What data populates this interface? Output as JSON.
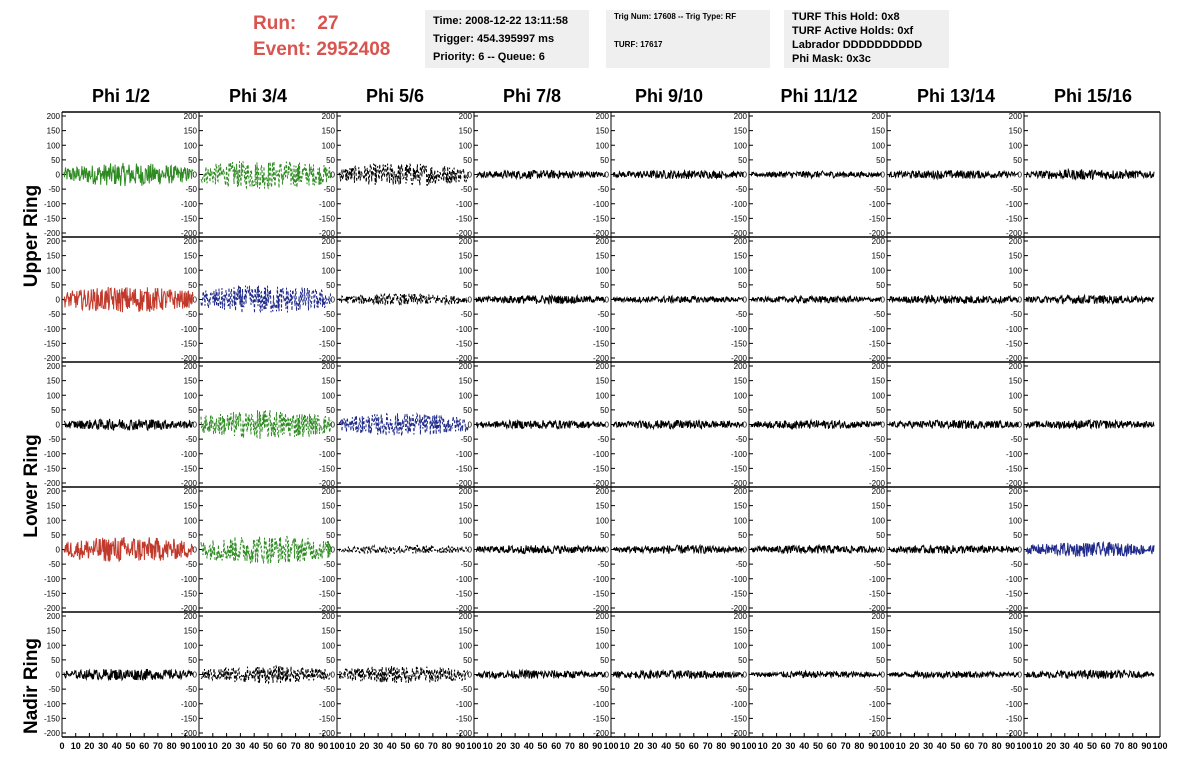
{
  "header": {
    "run_label": "Run:",
    "run_value": "27",
    "event_label": "Event:",
    "event_value": "2952408"
  },
  "info_box_1": {
    "time": "Time: 2008-12-22 13:11:58",
    "trigger": "Trigger: 454.395997 ms",
    "priority": "Priority: 6 -- Queue: 6"
  },
  "info_box_2": {
    "trig": "Trig Num: 17608 -- Trig Type: RF",
    "turf": "TURF: 17617"
  },
  "info_box_3": {
    "hold": "TURF This Hold: 0x8",
    "active": "TURF Active Holds: 0xf",
    "labrador": "Labrador DDDDDDDDDD",
    "phimask": "Phi Mask: 0x3c"
  },
  "columns": [
    "Phi 1/2",
    "Phi 3/4",
    "Phi 5/6",
    "Phi 7/8",
    "Phi 9/10",
    "Phi 11/12",
    "Phi 13/14",
    "Phi 15/16"
  ],
  "ring_labels": {
    "upper": "Upper Ring",
    "lower": "Lower Ring",
    "nadir": "Nadir Ring"
  },
  "colors": {
    "green": "#2e8b22",
    "red": "#c0392b",
    "blue": "#1f2a8a",
    "black": "#000000",
    "accent": "#d9534f"
  },
  "chart_data": {
    "type": "line",
    "grid": "8 columns x 5 rows of waveform panels",
    "ylim": [
      -200,
      200
    ],
    "xlim": [
      0,
      100
    ],
    "y_ticks": [
      -200,
      -150,
      -100,
      -50,
      0,
      50,
      100,
      150,
      200
    ],
    "x_tick_labels": [
      "0",
      "10",
      "20",
      "30",
      "40",
      "50",
      "60",
      "70",
      "80",
      "90",
      "100"
    ],
    "panel_amplitude": [
      [
        40,
        50,
        40,
        15,
        15,
        12,
        15,
        18
      ],
      [
        45,
        50,
        20,
        15,
        12,
        12,
        15,
        15
      ],
      [
        20,
        50,
        40,
        15,
        15,
        15,
        15,
        15
      ],
      [
        45,
        50,
        15,
        15,
        15,
        15,
        15,
        25
      ],
      [
        20,
        30,
        30,
        15,
        15,
        12,
        12,
        15
      ]
    ],
    "panel_color": [
      [
        "green",
        "green",
        "black",
        "black",
        "black",
        "black",
        "black",
        "black"
      ],
      [
        "red",
        "blue",
        "black",
        "black",
        "black",
        "black",
        "black",
        "black"
      ],
      [
        "black",
        "green",
        "blue",
        "black",
        "black",
        "black",
        "black",
        "black"
      ],
      [
        "red",
        "green",
        "black",
        "black",
        "black",
        "black",
        "black",
        "blue"
      ],
      [
        "black",
        "black",
        "black",
        "black",
        "black",
        "black",
        "black",
        "black"
      ]
    ],
    "panel_dashed": [
      [
        false,
        true,
        true,
        false,
        false,
        false,
        false,
        false
      ],
      [
        false,
        true,
        true,
        false,
        false,
        false,
        false,
        false
      ],
      [
        false,
        true,
        true,
        false,
        false,
        false,
        false,
        false
      ],
      [
        false,
        true,
        true,
        false,
        false,
        false,
        false,
        false
      ],
      [
        false,
        true,
        true,
        false,
        false,
        false,
        false,
        false
      ]
    ]
  }
}
